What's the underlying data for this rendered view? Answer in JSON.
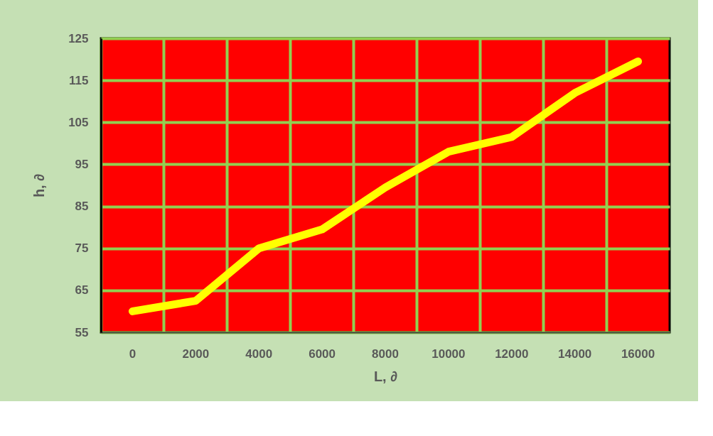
{
  "chart_data": {
    "type": "line",
    "xlabel": "L, ∂",
    "ylabel": "h, ∂",
    "categories": [
      "0",
      "2000",
      "4000",
      "6000",
      "8000",
      "10000",
      "12000",
      "14000",
      "16000"
    ],
    "series": [
      {
        "color": "#ffff00",
        "values": [
          60,
          62.5,
          75,
          79.5,
          89.5,
          98,
          101.5,
          112,
          119.5
        ]
      }
    ],
    "ylim": [
      55,
      125
    ],
    "yticks": [
      55,
      65,
      75,
      85,
      95,
      105,
      115,
      125
    ],
    "grid": true,
    "marker": "none",
    "line_style": "solid"
  }
}
